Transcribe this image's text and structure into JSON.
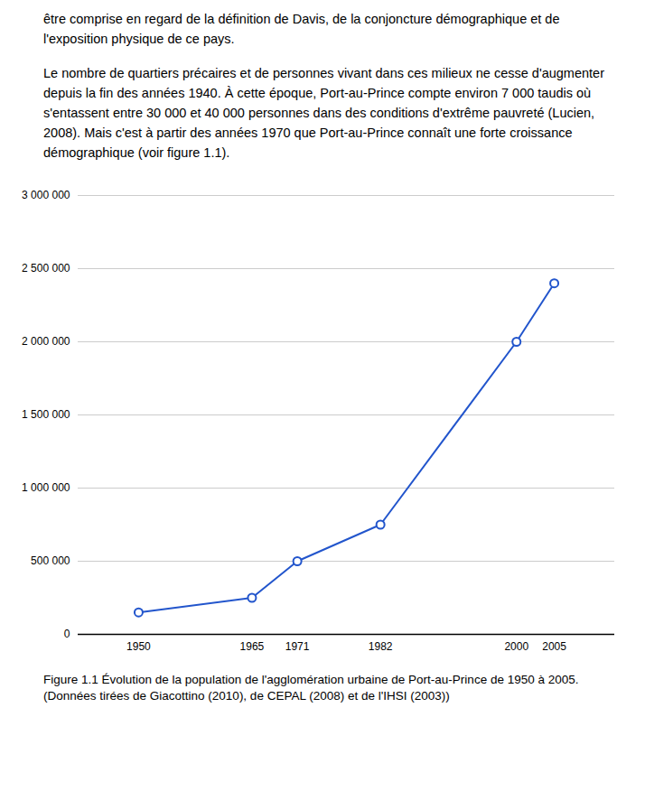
{
  "chart_data": {
    "type": "line",
    "subtitle": [
      "être comprise en regard de la définition de Davis, de la conjoncture démographique et de l'exposition physique de ce pays.",
      "Le nombre de quartiers précaires et de personnes vivant dans ces milieux ne cesse d'augmenter depuis la fin des années 1940. À cette époque, Port-au-Prince compte environ 7 000 taudis où s'entassent entre 30 000 et 40 000 personnes dans des conditions d'extrême pauvreté (Lucien, 2008). Mais c'est à partir des années 1970 que Port-au-Prince connaît une forte croissance démographique (voir figure 1.1)."
    ],
    "title": "Figure 1.1    Évolution de la population de l'agglomération urbaine de Port-au-Prince de 1950 à 2005. (Données tirées de Giacottino (2010), de CEPAL (2008) et de l'IHSI (2003))",
    "x": [
      1950,
      1965,
      1971,
      1982,
      2000,
      2005
    ],
    "values": [
      150000,
      250000,
      500000,
      750000,
      2000000,
      2400000
    ],
    "color": "#2255cc",
    "marker": "circle",
    "xlim": [
      1942,
      2013
    ],
    "xticks": [
      1950,
      1965,
      1971,
      1982,
      2000,
      2005
    ],
    "ylim": [
      0,
      3000000
    ],
    "yticks": [
      0,
      {
        "value": 500000,
        "label": "500 000"
      },
      {
        "value": 1000000,
        "label": "1 000 000"
      },
      {
        "value": 1500000,
        "label": "1 500 000"
      },
      {
        "value": 2000000,
        "label": "2 000 000"
      },
      {
        "value": 2500000,
        "label": "2 500 000"
      },
      {
        "value": 3000000,
        "label": "3 000 000"
      }
    ],
    "grid": "y"
  }
}
